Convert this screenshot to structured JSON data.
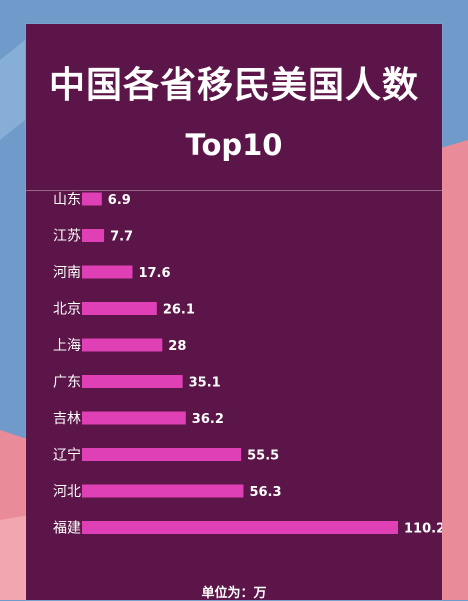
{
  "header": {
    "title": "中国各省移民美国人数",
    "subtitle": "Top10"
  },
  "unit_label": "单位为：万",
  "colors": {
    "panel_bg": "#5c1548",
    "bar": "#e040b5",
    "text": "#ffffff"
  },
  "chart_data": {
    "type": "bar",
    "orientation": "horizontal",
    "title": "中国各省移民美国人数",
    "subtitle": "Top10",
    "categories": [
      "山东",
      "江苏",
      "河南",
      "北京",
      "上海",
      "广东",
      "吉林",
      "辽宁",
      "河北",
      "福建"
    ],
    "values": [
      6.9,
      7.7,
      17.6,
      26.1,
      28,
      35.1,
      36.2,
      55.5,
      56.3,
      110.2
    ],
    "value_labels": [
      "6.9",
      "7.7",
      "17.6",
      "26.1",
      "28",
      "35.1",
      "36.2",
      "55.5",
      "56.3",
      "110.2"
    ],
    "xlim": [
      0,
      110.2
    ],
    "grid": false,
    "legend": "none"
  }
}
